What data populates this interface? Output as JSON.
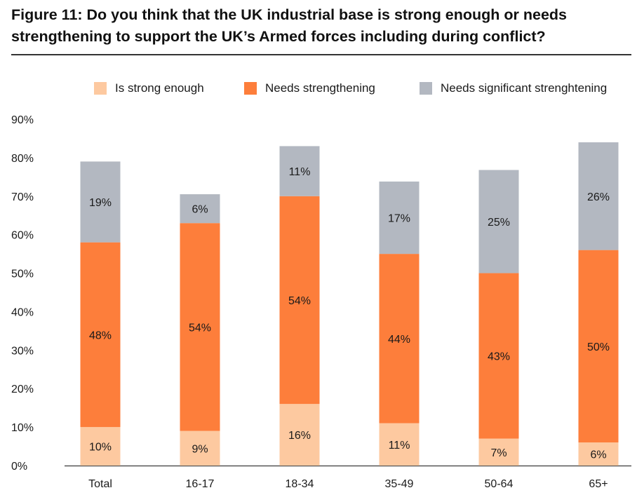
{
  "figure": {
    "title": "Figure 11: Do you think that the UK industrial base is strong enough or needs strengthening to support the UK’s Armed forces including during conflict?"
  },
  "colors": {
    "strong": "#fdc9a0",
    "strengthening": "#fd7e3b",
    "significant": "#b3b8c1",
    "axis": "#555555",
    "text": "#1a1a1a"
  },
  "chart_data": {
    "type": "bar",
    "stacked": true,
    "title": "Figure 11: Do you think that the UK industrial base is strong enough or needs strengthening to support the UK’s Armed forces including during conflict?",
    "xlabel": "",
    "ylabel": "",
    "ylim": [
      0,
      90
    ],
    "yticks": [
      "0%",
      "10%",
      "20%",
      "30%",
      "40%",
      "50%",
      "60%",
      "70%",
      "80%",
      "90%"
    ],
    "legend_position": "top",
    "categories": [
      "Total",
      "16-17",
      "18-34",
      "35-49",
      "50-64",
      "65+"
    ],
    "series": [
      {
        "name": "Is strong enough",
        "key": "strong",
        "values": [
          10,
          9,
          16,
          11,
          7,
          6
        ],
        "labels": [
          "10%",
          "9%",
          "16%",
          "11%",
          "7%",
          "6%"
        ]
      },
      {
        "name": "Needs strengthening",
        "key": "strengthening",
        "values": [
          48,
          54,
          54,
          44,
          43,
          50
        ],
        "labels": [
          "48%",
          "54%",
          "54%",
          "44%",
          "43%",
          "50%"
        ]
      },
      {
        "name": "Needs significant strenghtening",
        "key": "significant",
        "values": [
          19,
          6,
          11,
          17,
          25,
          26
        ],
        "labels": [
          "19%",
          "6%",
          "11%",
          "17%",
          "25%",
          "26%"
        ]
      }
    ],
    "stack_totals": [
      79,
      70.5,
      83,
      73.8,
      76.8,
      84
    ]
  }
}
